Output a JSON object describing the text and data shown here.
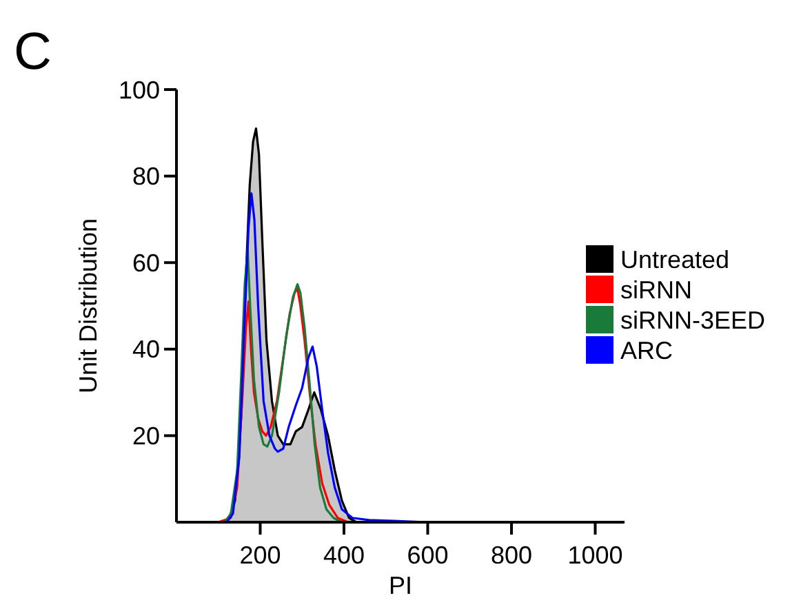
{
  "chart_data": {
    "type": "line",
    "title": "C",
    "xlabel": "PI",
    "ylabel": "Unit Distribution",
    "xlim": [
      0,
      1070
    ],
    "ylim": [
      0,
      100
    ],
    "xticks": [
      200,
      400,
      600,
      800,
      1000
    ],
    "yticks": [
      20,
      40,
      60,
      80,
      100
    ],
    "legend": "right",
    "grid": false,
    "marker": "none",
    "series": [
      {
        "name": "Untreated",
        "type": "area",
        "color": "#000000",
        "x": [
          0,
          110,
          126,
          140,
          155,
          165,
          175,
          183,
          190,
          197,
          205,
          215,
          228,
          242,
          255,
          265,
          272,
          285,
          300,
          315,
          329,
          345,
          362,
          378,
          395,
          412,
          430,
          1070
        ],
        "values": [
          0,
          0,
          1,
          5,
          25,
          55,
          78,
          88,
          91,
          85,
          65,
          42,
          28,
          20,
          18,
          18,
          18,
          21,
          22,
          26,
          30,
          26,
          20,
          12,
          5,
          1,
          0,
          0
        ]
      },
      {
        "name": "siRNN",
        "color": "#ff0000",
        "x": [
          0,
          100,
          130,
          145,
          158,
          166,
          172,
          178,
          185,
          195,
          205,
          214,
          225,
          240,
          255,
          270,
          282,
          289,
          296,
          306,
          318,
          332,
          348,
          365,
          385,
          410,
          1070
        ],
        "values": [
          0,
          0,
          1,
          8,
          30,
          45,
          51,
          40,
          30,
          24,
          21,
          20,
          22,
          28,
          38,
          48,
          53,
          54,
          50,
          42,
          30,
          18,
          9,
          4,
          1,
          0,
          0
        ]
      },
      {
        "name": "siRNN-3EED",
        "color": "#1a7a3a",
        "x": [
          0,
          115,
          130,
          145,
          155,
          163,
          170,
          176,
          185,
          197,
          208,
          217,
          228,
          245,
          262,
          278,
          289,
          296,
          306,
          318,
          330,
          343,
          358,
          375,
          395,
          1070
        ],
        "values": [
          0,
          0,
          2,
          12,
          35,
          55,
          63,
          50,
          33,
          22,
          18,
          17.5,
          20,
          30,
          43,
          52,
          55,
          53,
          45,
          32,
          18,
          8,
          3,
          1,
          0,
          0
        ]
      },
      {
        "name": "ARC",
        "color": "#0000ff",
        "x": [
          0,
          120,
          135,
          150,
          162,
          172,
          179,
          186,
          195,
          208,
          222,
          235,
          242,
          255,
          268,
          285,
          300,
          315,
          325,
          335,
          348,
          362,
          378,
          395,
          420,
          460,
          520,
          600,
          1070
        ],
        "values": [
          0,
          0,
          2,
          15,
          45,
          68,
          76,
          70,
          50,
          28,
          20,
          17,
          16.3,
          17,
          22,
          27,
          31,
          38,
          40.6,
          36,
          26,
          16,
          8,
          3,
          1,
          0.5,
          0.3,
          0,
          0
        ]
      }
    ]
  }
}
